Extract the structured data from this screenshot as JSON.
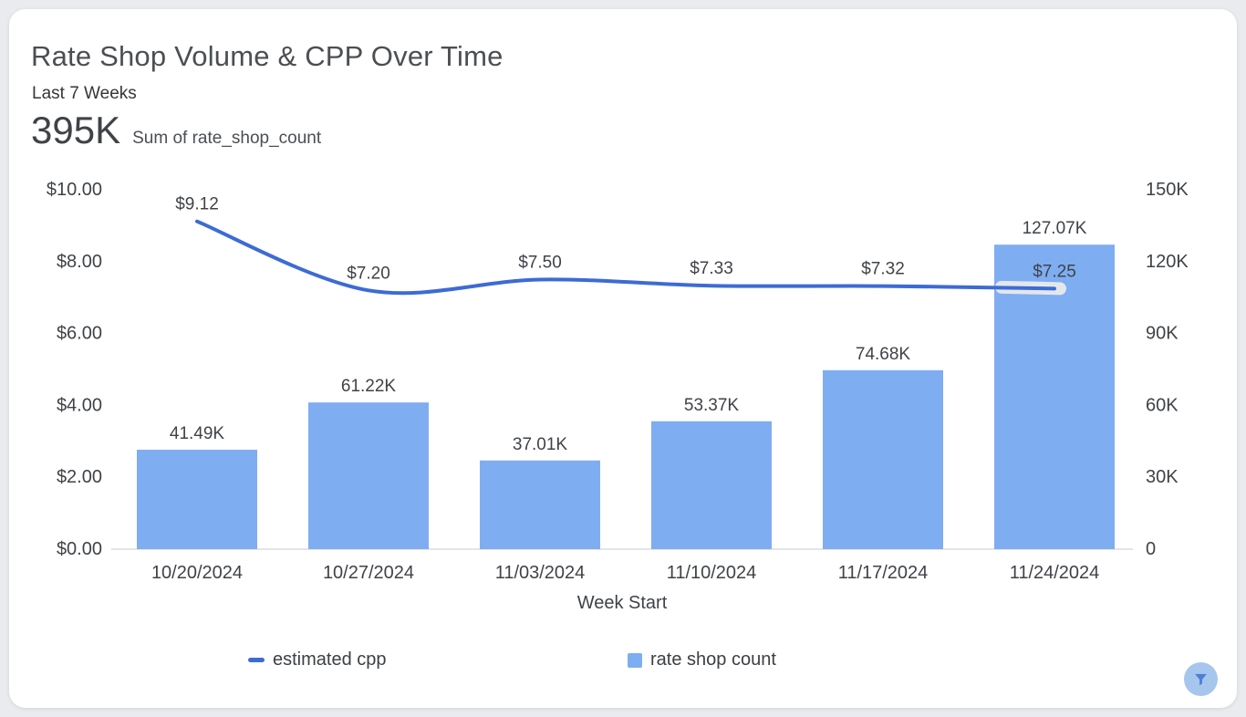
{
  "card": {
    "title": "Rate Shop Volume & CPP Over Time",
    "subtitle": "Last 7 Weeks",
    "kpi_value": "395K",
    "kpi_label": "Sum of rate_shop_count"
  },
  "chart_data": {
    "type": "bar+line",
    "categories": [
      "10/20/2024",
      "10/27/2024",
      "11/03/2024",
      "11/10/2024",
      "11/17/2024",
      "11/24/2024"
    ],
    "series": [
      {
        "name": "estimated cpp",
        "type": "line",
        "axis": "left",
        "values": [
          9.12,
          7.2,
          7.5,
          7.33,
          7.32,
          7.25
        ],
        "labels": [
          "$9.12",
          "$7.20",
          "$7.50",
          "$7.33",
          "$7.32",
          "$7.25"
        ],
        "color": "#3d6bd5"
      },
      {
        "name": "rate shop count",
        "type": "bar",
        "axis": "right",
        "values": [
          41490,
          61220,
          37010,
          53370,
          74680,
          127070
        ],
        "labels": [
          "41.49K",
          "61.22K",
          "37.01K",
          "53.37K",
          "74.68K",
          "127.07K"
        ],
        "color": "#7fadf2"
      }
    ],
    "xlabel": "Week Start",
    "left_axis": {
      "ticks": [
        "$0.00",
        "$2.00",
        "$4.00",
        "$6.00",
        "$8.00",
        "$10.00"
      ],
      "min": 0,
      "max": 10
    },
    "right_axis": {
      "ticks": [
        "0",
        "30K",
        "60K",
        "90K",
        "120K",
        "150K"
      ],
      "min": 0,
      "max": 150000
    },
    "legend": [
      {
        "label": "estimated cpp",
        "swatch": "line"
      },
      {
        "label": "rate shop count",
        "swatch": "square"
      }
    ],
    "grid": "baseline-only",
    "legend_position": "bottom"
  },
  "colors": {
    "bar": "#7fadf2",
    "line": "#3d6bd5",
    "axis_text": "#3f4347",
    "baseline": "#e4e4e4",
    "halo": "#e4e7eb",
    "filter_bg": "#a6c6ee",
    "filter_icon": "#4c7fd6"
  },
  "filter_button": {
    "icon": "funnel-icon"
  }
}
